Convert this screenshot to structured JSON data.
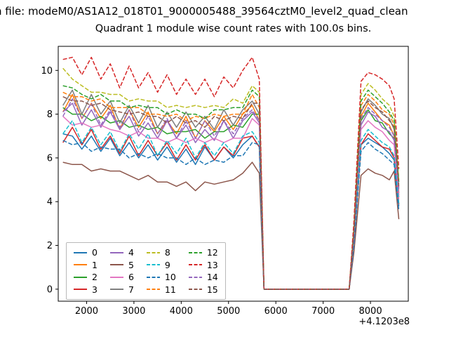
{
  "figure": {
    "title_line1": "n file: modeM0/AS1A12_018T01_9000005488_39564cztM0_level2_quad_clean",
    "title_line2": "Quadrant 1 module wise count rates with 100.0s bins.",
    "x_offset_label": "+4.1203e8"
  },
  "chart_data": {
    "type": "line",
    "title": "Quadrant 1 module wise count rates with 100.0s bins.",
    "xlabel": "",
    "ylabel": "",
    "x_axis_offset": "+4.1203e8",
    "xlim": [
      1400,
      8800
    ],
    "ylim": [
      -0.55,
      11.1
    ],
    "xticks": [
      2000,
      3000,
      4000,
      5000,
      6000,
      7000,
      8000
    ],
    "yticks": [
      0,
      2,
      4,
      6,
      8,
      10
    ],
    "grid": false,
    "legend_position": "lower left",
    "x": [
      1500,
      1700,
      1900,
      2100,
      2300,
      2500,
      2700,
      2900,
      3100,
      3300,
      3500,
      3700,
      3900,
      4100,
      4300,
      4500,
      4700,
      4900,
      5100,
      5300,
      5500,
      5650,
      5750,
      6600,
      7550,
      7650,
      7800,
      7950,
      8100,
      8250,
      8400,
      8500,
      8600
    ],
    "series": [
      {
        "label": "0",
        "color": "#1f77b4",
        "dashed": false,
        "values": [
          7.1,
          7.0,
          6.4,
          7.0,
          6.3,
          6.9,
          6.1,
          6.7,
          6.0,
          6.6,
          5.9,
          6.5,
          5.8,
          6.4,
          5.7,
          6.5,
          5.9,
          6.5,
          6.0,
          6.6,
          7.0,
          6.5,
          0,
          0,
          0,
          2.1,
          6.6,
          6.9,
          6.7,
          6.5,
          6.2,
          5.9,
          3.8
        ]
      },
      {
        "label": "1",
        "color": "#ff7f0e",
        "dashed": false,
        "values": [
          8.1,
          8.9,
          7.8,
          8.5,
          7.8,
          8.4,
          7.3,
          8.2,
          7.4,
          8.1,
          7.1,
          7.7,
          7.1,
          7.9,
          6.9,
          7.7,
          7.2,
          7.9,
          7.3,
          8.0,
          8.4,
          7.7,
          0,
          0,
          0,
          2.5,
          7.9,
          8.5,
          8.1,
          7.7,
          7.5,
          7.0,
          4.4
        ]
      },
      {
        "label": "2",
        "color": "#2ca02c",
        "dashed": false,
        "values": [
          8.3,
          8.0,
          8.0,
          7.7,
          7.9,
          7.6,
          7.7,
          7.4,
          7.5,
          7.3,
          7.4,
          7.1,
          7.2,
          7.2,
          7.3,
          6.9,
          7.2,
          7.2,
          7.5,
          7.4,
          8.0,
          8.0,
          0,
          0,
          0,
          2.4,
          7.7,
          8.2,
          7.7,
          7.6,
          7.1,
          6.9,
          4.2
        ]
      },
      {
        "label": "3",
        "color": "#d62728",
        "dashed": false,
        "values": [
          6.7,
          7.4,
          6.6,
          7.3,
          6.4,
          7.0,
          6.2,
          7.0,
          6.1,
          6.8,
          6.1,
          6.7,
          5.9,
          6.6,
          5.9,
          6.6,
          5.9,
          6.5,
          6.1,
          6.9,
          7.0,
          6.5,
          0,
          0,
          0,
          2.1,
          6.6,
          7.1,
          6.8,
          6.5,
          6.4,
          6.0,
          3.9
        ]
      },
      {
        "label": "4",
        "color": "#9467bd",
        "dashed": false,
        "values": [
          8.1,
          8.5,
          7.5,
          8.2,
          7.4,
          8.1,
          7.3,
          7.9,
          7.0,
          7.6,
          6.9,
          7.7,
          6.9,
          7.5,
          6.7,
          7.3,
          6.8,
          7.7,
          6.9,
          7.7,
          8.1,
          7.6,
          0,
          0,
          0,
          2.3,
          7.5,
          8.1,
          7.9,
          7.4,
          7.2,
          6.8,
          4.3
        ]
      },
      {
        "label": "5",
        "color": "#8c564b",
        "dashed": false,
        "values": [
          5.8,
          5.7,
          5.7,
          5.4,
          5.5,
          5.4,
          5.4,
          5.2,
          5.0,
          5.2,
          4.9,
          4.9,
          4.7,
          4.9,
          4.5,
          4.9,
          4.8,
          4.9,
          5.0,
          5.3,
          5.8,
          5.3,
          0,
          0,
          0,
          1.7,
          5.2,
          5.5,
          5.3,
          5.2,
          5.0,
          5.4,
          3.2
        ]
      },
      {
        "label": "6",
        "color": "#e377c2",
        "dashed": false,
        "values": [
          7.9,
          7.5,
          7.6,
          7.4,
          7.5,
          7.3,
          7.2,
          7.0,
          7.2,
          6.9,
          6.9,
          6.7,
          6.9,
          6.7,
          6.9,
          6.7,
          6.9,
          6.7,
          6.9,
          6.9,
          7.8,
          7.5,
          0,
          0,
          0,
          2.2,
          7.3,
          7.7,
          7.4,
          7.2,
          6.8,
          6.6,
          4.1
        ]
      },
      {
        "label": "7",
        "color": "#7f7f7f",
        "dashed": false,
        "values": [
          8.4,
          9.1,
          8.0,
          8.9,
          8.0,
          8.6,
          7.6,
          8.4,
          7.6,
          8.4,
          7.4,
          8.1,
          7.4,
          8.1,
          7.4,
          7.9,
          7.3,
          8.2,
          7.5,
          8.2,
          8.6,
          8.0,
          0,
          0,
          0,
          2.6,
          8.1,
          8.7,
          8.4,
          8.0,
          7.8,
          7.3,
          4.6
        ]
      },
      {
        "label": "8",
        "color": "#bcbd22",
        "dashed": true,
        "values": [
          10.1,
          9.6,
          9.3,
          9.0,
          9.0,
          8.9,
          8.9,
          8.6,
          8.7,
          8.6,
          8.6,
          8.3,
          8.4,
          8.3,
          8.4,
          8.3,
          8.4,
          8.3,
          8.7,
          8.5,
          9.3,
          9.0,
          0,
          0,
          0,
          2.8,
          8.9,
          9.4,
          9.1,
          8.7,
          8.4,
          7.9,
          5.0
        ]
      },
      {
        "label": "9",
        "color": "#17becf",
        "dashed": true,
        "values": [
          7.1,
          7.7,
          6.7,
          7.4,
          6.6,
          7.2,
          6.3,
          7.1,
          6.4,
          7.1,
          6.1,
          6.8,
          6.2,
          6.9,
          6.0,
          6.7,
          6.1,
          6.7,
          6.2,
          7.0,
          7.2,
          6.7,
          0,
          0,
          0,
          2.2,
          6.8,
          7.3,
          7.0,
          6.7,
          6.5,
          6.1,
          3.9
        ]
      },
      {
        "label": "10",
        "color": "#1f77b4",
        "dashed": true,
        "values": [
          6.8,
          6.6,
          6.7,
          6.3,
          6.5,
          6.4,
          6.4,
          6.0,
          6.2,
          6.0,
          6.2,
          6.0,
          6.0,
          5.7,
          6.0,
          5.7,
          5.9,
          5.8,
          6.1,
          6.1,
          6.7,
          6.6,
          0,
          0,
          0,
          2.0,
          6.3,
          6.7,
          6.4,
          6.2,
          5.9,
          5.7,
          3.6
        ]
      },
      {
        "label": "11",
        "color": "#ff7f0e",
        "dashed": true,
        "values": [
          9.0,
          8.8,
          8.8,
          8.6,
          8.7,
          8.3,
          8.3,
          8.3,
          8.3,
          8.0,
          8.0,
          7.9,
          8.0,
          7.7,
          7.9,
          7.8,
          8.0,
          7.9,
          8.0,
          8.0,
          8.9,
          8.3,
          0,
          0,
          0,
          2.7,
          8.4,
          8.9,
          8.6,
          8.2,
          8.0,
          7.5,
          4.8
        ]
      },
      {
        "label": "12",
        "color": "#2ca02c",
        "dashed": true,
        "values": [
          9.3,
          9.2,
          8.9,
          8.7,
          8.9,
          8.6,
          8.6,
          8.3,
          8.4,
          8.3,
          8.3,
          8.0,
          8.2,
          8.0,
          8.0,
          7.8,
          8.2,
          8.2,
          8.3,
          8.3,
          9.1,
          8.8,
          0,
          0,
          0,
          2.7,
          8.6,
          9.1,
          8.8,
          8.5,
          8.1,
          7.7,
          4.9
        ]
      },
      {
        "label": "13",
        "color": "#d62728",
        "dashed": true,
        "values": [
          10.5,
          10.6,
          9.8,
          10.6,
          9.6,
          10.3,
          9.2,
          10.2,
          9.2,
          9.9,
          9.0,
          9.8,
          8.9,
          9.6,
          8.9,
          9.6,
          8.8,
          9.7,
          9.2,
          10.0,
          10.6,
          9.6,
          0,
          0,
          0,
          3.1,
          9.5,
          9.9,
          9.8,
          9.6,
          9.3,
          8.7,
          5.5
        ]
      },
      {
        "label": "14",
        "color": "#9467bd",
        "dashed": true,
        "values": [
          7.9,
          8.7,
          7.8,
          8.5,
          7.5,
          8.2,
          7.4,
          8.2,
          7.2,
          7.9,
          7.1,
          7.8,
          6.9,
          7.7,
          6.9,
          7.7,
          7.0,
          7.7,
          7.1,
          7.8,
          8.2,
          7.7,
          0,
          0,
          0,
          2.4,
          7.8,
          8.3,
          8.0,
          7.7,
          7.4,
          7.0,
          4.5
        ]
      },
      {
        "label": "15",
        "color": "#8c564b",
        "dashed": true,
        "values": [
          8.8,
          8.6,
          8.6,
          8.4,
          8.5,
          8.2,
          8.1,
          8.0,
          8.1,
          7.9,
          7.9,
          7.6,
          7.9,
          7.6,
          7.7,
          7.4,
          7.9,
          7.7,
          7.9,
          7.8,
          8.5,
          8.5,
          0,
          0,
          0,
          2.6,
          8.2,
          8.6,
          8.3,
          8.1,
          7.7,
          7.4,
          4.7
        ]
      }
    ]
  }
}
